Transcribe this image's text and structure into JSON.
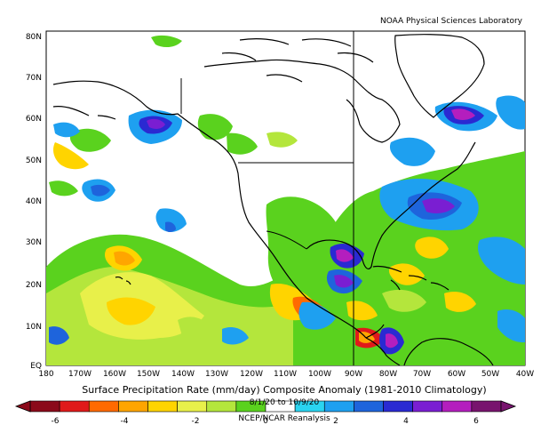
{
  "credit": "NOAA Physical Sciences Laboratory",
  "title": "Surface Precipitation Rate (mm/day) Composite Anomaly (1981-2010 Climatology)",
  "date_range": "8/1/20 to 10/9/20",
  "dataset": "NCEP/NCAR Reanalysis",
  "lat_labels": [
    "EQ",
    "10N",
    "20N",
    "30N",
    "40N",
    "50N",
    "60N",
    "70N",
    "80N"
  ],
  "lon_labels": [
    "180",
    "170W",
    "160W",
    "150W",
    "140W",
    "130W",
    "120W",
    "110W",
    "100W",
    "90W",
    "80W",
    "70W",
    "60W",
    "50W",
    "40W"
  ],
  "colorbar": {
    "tick_labels": [
      "-6",
      "-4",
      "-2",
      "0",
      "2",
      "4",
      "6"
    ],
    "colors": [
      "#8b0a1a",
      "#e01a1a",
      "#ff6a00",
      "#ffa500",
      "#ffd400",
      "#e8f04a",
      "#b4e63c",
      "#5ad21e",
      "#ffffff",
      "#2ad4f0",
      "#1ea0f0",
      "#1e64dc",
      "#2a2ad2",
      "#7a1ed2",
      "#b41ebe",
      "#78146e"
    ]
  }
}
